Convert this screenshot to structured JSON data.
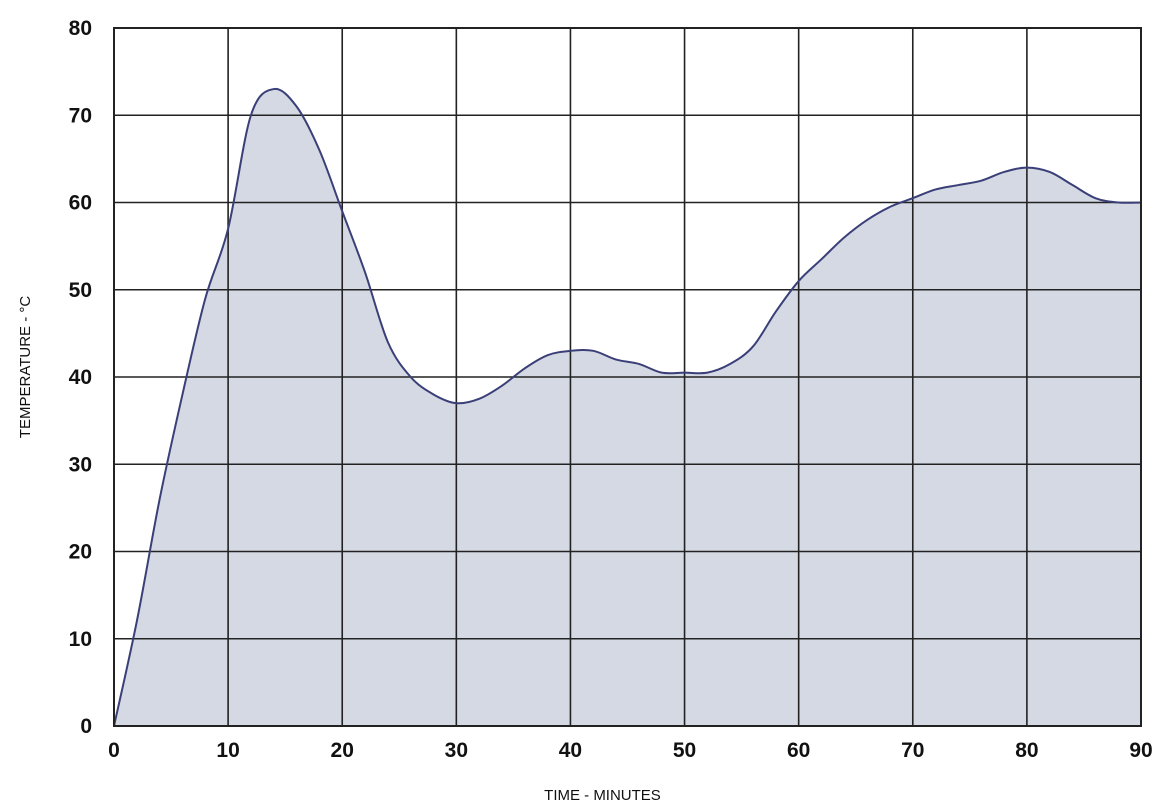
{
  "chart_data": {
    "type": "area",
    "title": "",
    "xlabel": "TIME - MINUTES",
    "ylabel": "TEMPERATURE - °C",
    "xlim": [
      0,
      90
    ],
    "ylim": [
      0,
      80
    ],
    "x_ticks": [
      0,
      10,
      20,
      30,
      40,
      50,
      60,
      70,
      80,
      90
    ],
    "y_ticks": [
      0,
      10,
      20,
      30,
      40,
      50,
      60,
      70,
      80
    ],
    "x_tick_labels": [
      "0",
      "10",
      "20",
      "30",
      "40",
      "50",
      "60",
      "70",
      "80",
      "90"
    ],
    "y_tick_labels": [
      "0",
      "10",
      "20",
      "30",
      "40",
      "50",
      "60",
      "70",
      "80"
    ],
    "grid": true,
    "legend": "none",
    "series": [
      {
        "x": [
          0,
          2,
          4,
          6,
          8,
          10,
          12,
          14,
          16,
          18,
          20,
          22,
          24,
          26,
          28,
          30,
          32,
          34,
          36,
          38,
          40,
          42,
          44,
          46,
          48,
          50,
          52,
          54,
          56,
          58,
          60,
          62,
          64,
          66,
          68,
          70,
          72,
          74,
          76,
          78,
          80,
          82,
          84,
          86,
          88,
          90
        ],
        "y": [
          0,
          12,
          26,
          38,
          49,
          57,
          70,
          73,
          71,
          66,
          59,
          52,
          44,
          40,
          38,
          37,
          37.5,
          39,
          41,
          42.5,
          43,
          43,
          42,
          41.5,
          40.5,
          40.5,
          40.5,
          41.5,
          43.5,
          47.5,
          51,
          53.5,
          56,
          58,
          59.5,
          60.5,
          61.5,
          62,
          62.5,
          63.5,
          64,
          63.5,
          62,
          60.5,
          60,
          60
        ]
      }
    ],
    "colors": {
      "fill": "#d4d9e3",
      "line": "#3a3f78",
      "grid": "#222222",
      "border": "#222222",
      "background": "#ffffff"
    }
  }
}
